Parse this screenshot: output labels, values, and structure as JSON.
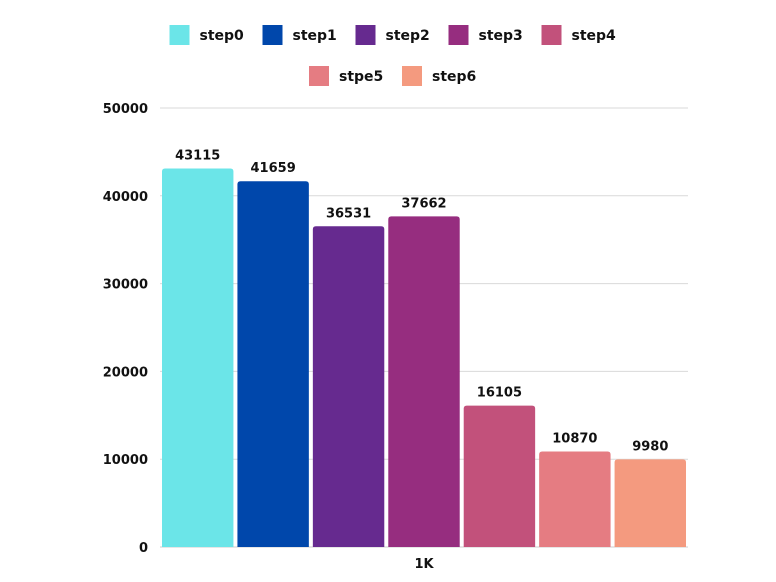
{
  "chart_data": {
    "type": "bar",
    "categories": [
      "1K"
    ],
    "series": [
      {
        "name": "step0",
        "values": [
          43115
        ],
        "color": "#6be5e8"
      },
      {
        "name": "step1",
        "values": [
          41659
        ],
        "color": "#0047ab"
      },
      {
        "name": "step2",
        "values": [
          36531
        ],
        "color": "#662a8f"
      },
      {
        "name": "step3",
        "values": [
          37662
        ],
        "color": "#962d7f"
      },
      {
        "name": "step4",
        "values": [
          16105
        ],
        "color": "#c2517b"
      },
      {
        "name": "stpe5",
        "values": [
          10870
        ],
        "color": "#e57c82"
      },
      {
        "name": "step6",
        "values": [
          9980
        ],
        "color": "#f49a7f"
      }
    ],
    "title": "",
    "xlabel": "",
    "ylabel": "",
    "ylim": [
      0,
      50000
    ],
    "yticks": [
      0,
      10000,
      20000,
      30000,
      40000,
      50000
    ],
    "grid": true,
    "legend_position": "top"
  }
}
